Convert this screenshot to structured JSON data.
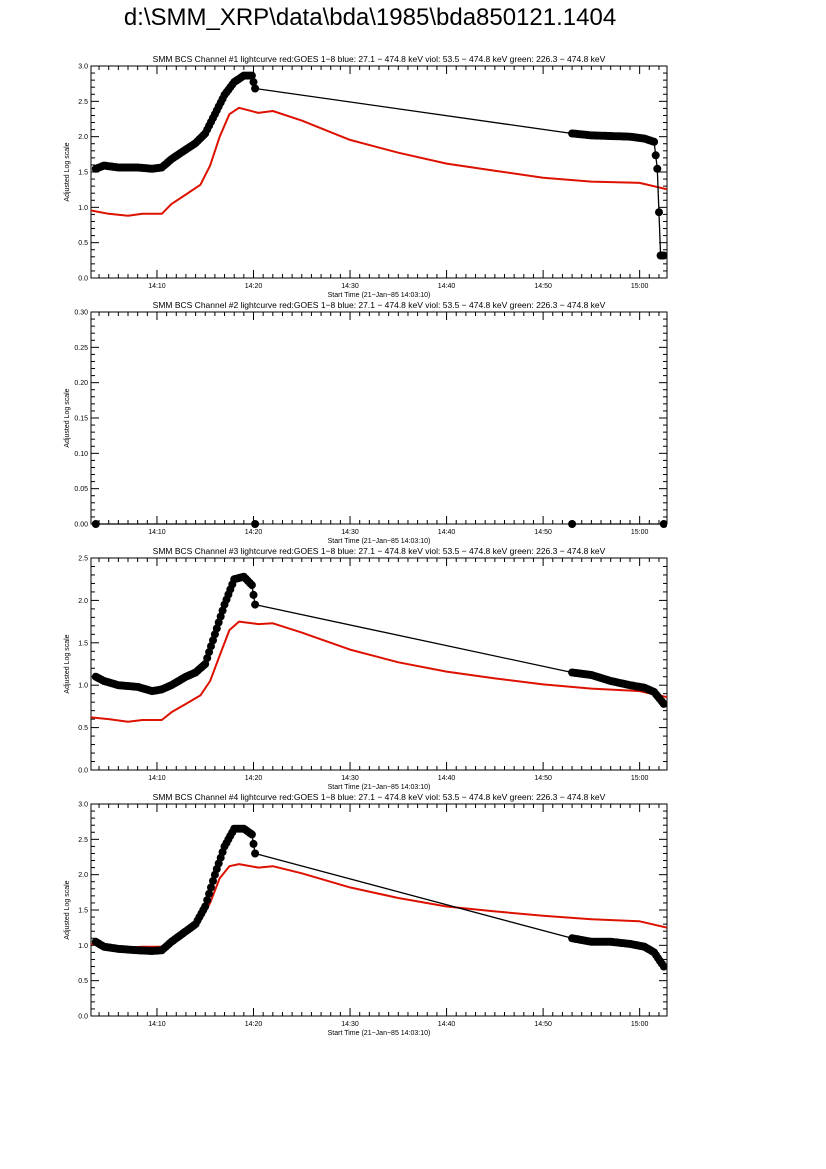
{
  "page": {
    "title": "d:\\SMM_XRP\\data\\bda\\1985\\bda850121.1404"
  },
  "colors": {
    "goes": "#dd1100",
    "channel": "#000000",
    "axis": "#000000"
  },
  "chart_data": [
    {
      "type": "line",
      "title": "SMM BCS Channel #1 lightcurve  red:GOES 1−8  blue: 27.1 − 474.8 keV  viol: 53.5 − 474.8 keV  green: 226.3 − 474.8 keV",
      "xlabel": "Start Time (21−Jan−85 14:03:10)",
      "ylabel": "Adjusted Log scale",
      "xlim": [
        "14:03:10",
        "15:02:50"
      ],
      "ylim": [
        0,
        3.3
      ],
      "x_ticks": [
        "14:10",
        "14:20",
        "14:30",
        "14:40",
        "14:50",
        "15:00"
      ],
      "y_ticks": [
        "0.0",
        "0.5",
        "1.0",
        "1.5",
        "2.0",
        "2.5",
        "3.0"
      ],
      "series": [
        {
          "name": "red:GOES 1−8",
          "color": "#dd1100",
          "points": [
            [
              "14:03:10",
              1.05
            ],
            [
              "14:05:00",
              1.0
            ],
            [
              "14:07:00",
              0.97
            ],
            [
              "14:08:30",
              1.0
            ],
            [
              "14:10:30",
              1.0
            ],
            [
              "14:11:30",
              1.15
            ],
            [
              "14:13:00",
              1.3
            ],
            [
              "14:14:30",
              1.45
            ],
            [
              "14:15:30",
              1.75
            ],
            [
              "14:16:30",
              2.2
            ],
            [
              "14:17:30",
              2.55
            ],
            [
              "14:18:30",
              2.65
            ],
            [
              "14:20:30",
              2.57
            ],
            [
              "14:22:00",
              2.6
            ],
            [
              "14:25:00",
              2.45
            ],
            [
              "14:30:00",
              2.15
            ],
            [
              "14:35:00",
              1.95
            ],
            [
              "14:40:00",
              1.78
            ],
            [
              "14:45:00",
              1.67
            ],
            [
              "14:50:00",
              1.56
            ],
            [
              "14:55:00",
              1.5
            ],
            [
              "15:00:00",
              1.48
            ],
            [
              "15:02:50",
              1.38
            ]
          ]
        },
        {
          "name": "BCS Channel #1",
          "color": "#000000",
          "points": [
            [
              "14:03:40",
              1.7
            ],
            [
              "14:04:30",
              1.75
            ],
            [
              "14:06:00",
              1.72
            ],
            [
              "14:08:00",
              1.72
            ],
            [
              "14:09:30",
              1.7
            ],
            [
              "14:10:30",
              1.72
            ],
            [
              "14:11:30",
              1.85
            ],
            [
              "14:13:00",
              2.0
            ],
            [
              "14:14:00",
              2.1
            ],
            [
              "14:15:00",
              2.25
            ],
            [
              "14:16:00",
              2.55
            ],
            [
              "14:17:00",
              2.85
            ],
            [
              "14:18:00",
              3.05
            ],
            [
              "14:19:00",
              3.15
            ],
            [
              "14:19:50",
              3.15
            ],
            [
              "14:20:10",
              2.95
            ],
            [
              "14:53:00",
              2.25
            ],
            [
              "14:55:00",
              2.22
            ],
            [
              "14:57:00",
              2.21
            ],
            [
              "14:59:00",
              2.2
            ],
            [
              "15:00:30",
              2.17
            ],
            [
              "15:01:30",
              2.12
            ],
            [
              "15:01:50",
              1.7
            ],
            [
              "15:02:10",
              0.35
            ],
            [
              "15:02:30",
              0.35
            ]
          ]
        }
      ]
    },
    {
      "type": "line",
      "title": "SMM BCS Channel #2 lightcurve  red:GOES 1−8  blue: 27.1 − 474.8 keV  viol: 53.5 − 474.8 keV  green: 226.3 − 474.8 keV",
      "xlabel": "Start Time (21−Jan−85 14:03:10)",
      "ylabel": "Adjusted Log scale",
      "xlim": [
        "14:03:10",
        "15:02:50"
      ],
      "ylim": [
        0,
        0.3
      ],
      "x_ticks": [
        "14:10",
        "14:20",
        "14:30",
        "14:40",
        "14:50",
        "15:00"
      ],
      "y_ticks": [
        "0.00",
        "0.05",
        "0.10",
        "0.15",
        "0.20",
        "0.25",
        "0.30"
      ],
      "series": [
        {
          "name": "BCS Channel #2 (segment 1)",
          "color": "#000000",
          "points": [
            [
              "14:03:40",
              0
            ],
            [
              "14:20:10",
              0
            ]
          ]
        },
        {
          "name": "BCS Channel #2 (segment 2)",
          "color": "#000000",
          "points": [
            [
              "14:53:00",
              0
            ],
            [
              "15:02:30",
              0
            ]
          ]
        }
      ]
    },
    {
      "type": "line",
      "title": "SMM BCS Channel #3 lightcurve  red:GOES 1−8  blue: 27.1 − 474.8 keV  viol: 53.5 − 474.8 keV  green: 226.3 − 474.8 keV",
      "xlabel": "Start Time (21−Jan−85 14:03:10)",
      "ylabel": "Adjusted Log scale",
      "xlim": [
        "14:03:10",
        "15:02:50"
      ],
      "ylim": [
        0,
        2.5
      ],
      "x_ticks": [
        "14:10",
        "14:20",
        "14:30",
        "14:40",
        "14:50",
        "15:00"
      ],
      "y_ticks": [
        "0.0",
        "0.5",
        "1.0",
        "1.5",
        "2.0",
        "2.5"
      ],
      "series": [
        {
          "name": "red:GOES 1−8",
          "color": "#dd1100",
          "points": [
            [
              "14:03:10",
              0.62
            ],
            [
              "14:05:00",
              0.6
            ],
            [
              "14:07:00",
              0.57
            ],
            [
              "14:08:30",
              0.59
            ],
            [
              "14:10:30",
              0.59
            ],
            [
              "14:11:30",
              0.68
            ],
            [
              "14:13:00",
              0.78
            ],
            [
              "14:14:30",
              0.88
            ],
            [
              "14:15:30",
              1.05
            ],
            [
              "14:16:30",
              1.35
            ],
            [
              "14:17:30",
              1.65
            ],
            [
              "14:18:30",
              1.75
            ],
            [
              "14:20:30",
              1.72
            ],
            [
              "14:22:00",
              1.73
            ],
            [
              "14:25:00",
              1.62
            ],
            [
              "14:30:00",
              1.42
            ],
            [
              "14:35:00",
              1.27
            ],
            [
              "14:40:00",
              1.16
            ],
            [
              "14:45:00",
              1.08
            ],
            [
              "14:50:00",
              1.01
            ],
            [
              "14:55:00",
              0.96
            ],
            [
              "15:00:00",
              0.93
            ],
            [
              "15:02:50",
              0.86
            ]
          ]
        },
        {
          "name": "BCS Channel #3",
          "color": "#000000",
          "points": [
            [
              "14:03:40",
              1.1
            ],
            [
              "14:04:30",
              1.05
            ],
            [
              "14:06:00",
              1.0
            ],
            [
              "14:08:00",
              0.98
            ],
            [
              "14:09:30",
              0.93
            ],
            [
              "14:10:30",
              0.95
            ],
            [
              "14:11:30",
              1.0
            ],
            [
              "14:13:00",
              1.1
            ],
            [
              "14:14:00",
              1.15
            ],
            [
              "14:15:00",
              1.25
            ],
            [
              "14:16:00",
              1.6
            ],
            [
              "14:17:00",
              1.95
            ],
            [
              "14:18:00",
              2.25
            ],
            [
              "14:19:00",
              2.28
            ],
            [
              "14:19:50",
              2.18
            ],
            [
              "14:20:10",
              1.95
            ],
            [
              "14:53:00",
              1.15
            ],
            [
              "14:55:00",
              1.12
            ],
            [
              "14:57:00",
              1.05
            ],
            [
              "14:59:00",
              1.0
            ],
            [
              "15:00:30",
              0.97
            ],
            [
              "15:01:30",
              0.92
            ],
            [
              "15:02:30",
              0.78
            ]
          ]
        }
      ]
    },
    {
      "type": "line",
      "title": "SMM BCS Channel #4 lightcurve  red:GOES 1−8  blue: 27.1 − 474.8 keV  viol: 53.5 − 474.8 keV  green: 226.3 − 474.8 keV",
      "xlabel": "Start Time (21−Jan−85 14:03:10)",
      "ylabel": "Adjusted Log scale",
      "xlim": [
        "14:03:10",
        "15:02:50"
      ],
      "ylim": [
        0,
        3.0
      ],
      "x_ticks": [
        "14:10",
        "14:20",
        "14:30",
        "14:40",
        "14:50",
        "15:00"
      ],
      "y_ticks": [
        "0.0",
        "0.5",
        "1.0",
        "1.5",
        "2.0",
        "2.5",
        "3.0"
      ],
      "series": [
        {
          "name": "red:GOES 1−8",
          "color": "#dd1100",
          "points": [
            [
              "14:03:10",
              1.02
            ],
            [
              "14:05:00",
              1.0
            ],
            [
              "14:07:00",
              0.97
            ],
            [
              "14:08:30",
              0.98
            ],
            [
              "14:10:30",
              0.98
            ],
            [
              "14:11:30",
              1.08
            ],
            [
              "14:13:00",
              1.2
            ],
            [
              "14:14:30",
              1.35
            ],
            [
              "14:15:30",
              1.6
            ],
            [
              "14:16:30",
              1.95
            ],
            [
              "14:17:30",
              2.12
            ],
            [
              "14:18:30",
              2.15
            ],
            [
              "14:20:30",
              2.1
            ],
            [
              "14:22:00",
              2.12
            ],
            [
              "14:25:00",
              2.02
            ],
            [
              "14:30:00",
              1.82
            ],
            [
              "14:35:00",
              1.67
            ],
            [
              "14:40:00",
              1.55
            ],
            [
              "14:45:00",
              1.48
            ],
            [
              "14:50:00",
              1.42
            ],
            [
              "14:55:00",
              1.37
            ],
            [
              "15:00:00",
              1.34
            ],
            [
              "15:02:50",
              1.25
            ]
          ]
        },
        {
          "name": "BCS Channel #4",
          "color": "#000000",
          "points": [
            [
              "14:03:40",
              1.05
            ],
            [
              "14:04:30",
              0.98
            ],
            [
              "14:06:00",
              0.95
            ],
            [
              "14:08:00",
              0.93
            ],
            [
              "14:09:30",
              0.92
            ],
            [
              "14:10:30",
              0.93
            ],
            [
              "14:11:30",
              1.05
            ],
            [
              "14:13:00",
              1.2
            ],
            [
              "14:14:00",
              1.3
            ],
            [
              "14:15:00",
              1.55
            ],
            [
              "14:16:00",
              2.0
            ],
            [
              "14:17:00",
              2.4
            ],
            [
              "14:18:00",
              2.65
            ],
            [
              "14:19:00",
              2.65
            ],
            [
              "14:19:50",
              2.57
            ],
            [
              "14:20:10",
              2.3
            ],
            [
              "14:53:00",
              1.1
            ],
            [
              "14:55:00",
              1.05
            ],
            [
              "14:57:00",
              1.05
            ],
            [
              "14:59:00",
              1.02
            ],
            [
              "15:00:30",
              0.98
            ],
            [
              "15:01:30",
              0.9
            ],
            [
              "15:02:30",
              0.7
            ]
          ]
        }
      ]
    }
  ]
}
